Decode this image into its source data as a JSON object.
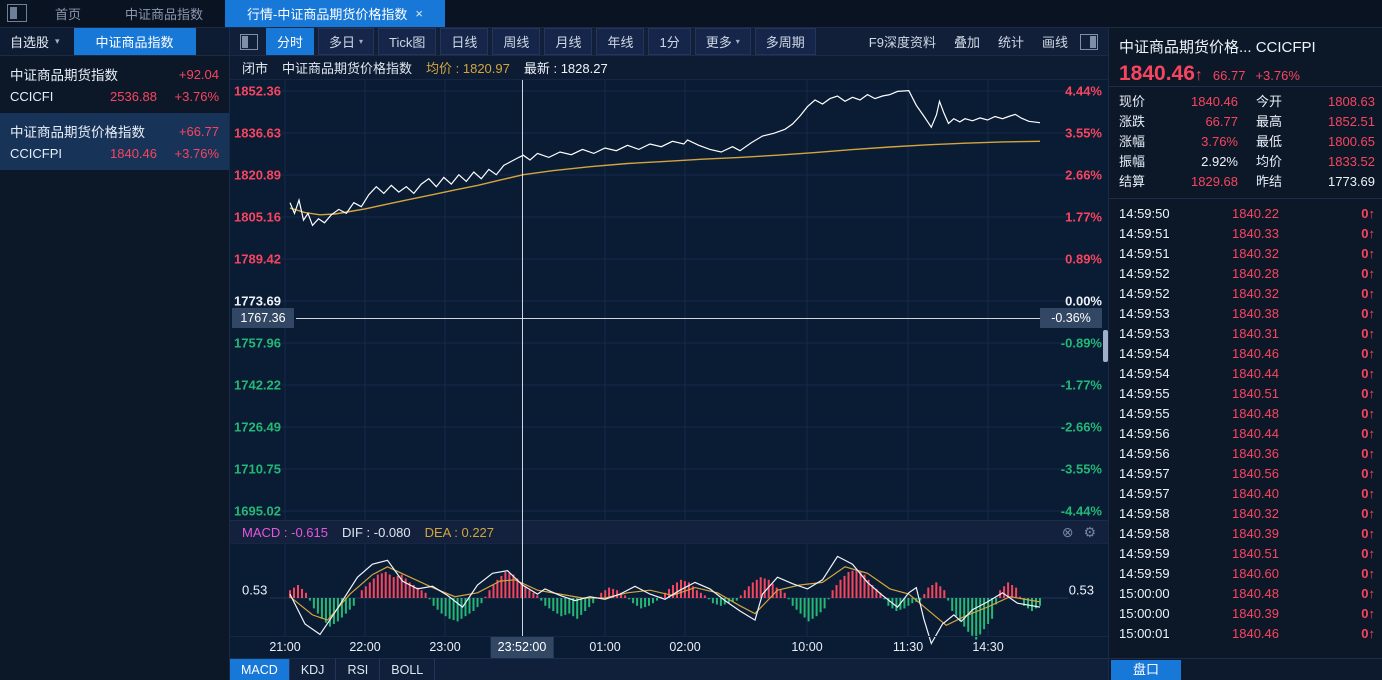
{
  "icons": {
    "caret_down": "▾",
    "close": "×",
    "close_circle": "⊗",
    "gear": "⚙",
    "arrow_up": "↑"
  },
  "colors": {
    "up": "#f8455f",
    "down": "#23b876",
    "accent": "#1878d8",
    "price_line": "#ffffff",
    "avg_line": "#d2a53f",
    "macd_value": "#e557e0",
    "dea_value": "#d2a53f"
  },
  "topbar": {
    "tabs": [
      {
        "label": "首页",
        "active": false
      },
      {
        "label": "中证商品指数",
        "active": false
      },
      {
        "label": "行情-中证商品期货价格指数",
        "active": true,
        "closable": true
      }
    ]
  },
  "sidebar": {
    "dropdown_label": "自选股",
    "tab_label": "中证商品指数",
    "items": [
      {
        "name": "中证商品期货指数",
        "code": "CCICFI",
        "price": "2536.88",
        "change": "+92.04",
        "pct": "+3.76%",
        "selected": false
      },
      {
        "name": "中证商品期货价格指数",
        "code": "CCICFPI",
        "price": "1840.46",
        "change": "+66.77",
        "pct": "+3.76%",
        "selected": true
      }
    ]
  },
  "toolbar": {
    "buttons": [
      {
        "label": "分时",
        "active": true
      },
      {
        "label": "多日",
        "caret": true
      },
      {
        "label": "Tick图"
      },
      {
        "label": "日线"
      },
      {
        "label": "周线"
      },
      {
        "label": "月线"
      },
      {
        "label": "年线"
      },
      {
        "label": "1分"
      },
      {
        "label": "更多",
        "caret": true
      },
      {
        "label": "多周期"
      }
    ],
    "right_items": [
      "F9深度资料",
      "叠加",
      "统计",
      "画线"
    ]
  },
  "chart_header": {
    "status": "闭市",
    "name": "中证商品期货价格指数",
    "avg_text": "均价 : 1820.97",
    "last_label": "最新 : ",
    "last_value": "1828.27"
  },
  "crosshair": {
    "price": "1767.36",
    "pct": "-0.36%",
    "time": "23:52:00"
  },
  "macd_bar": {
    "macd_text": "MACD : -0.615",
    "dif_text": "DIF : -0.080",
    "dea_text": "DEA : 0.227",
    "left_value": "0.53",
    "right_value": "0.53"
  },
  "indicator_tabs": [
    {
      "label": "MACD",
      "active": true
    },
    {
      "label": "KDJ"
    },
    {
      "label": "RSI"
    },
    {
      "label": "BOLL"
    }
  ],
  "quote": {
    "title": "中证商品期货价格...",
    "code": "CCICFPI",
    "price": "1840.46",
    "change": "66.77",
    "pct": "+3.76%",
    "stats": [
      {
        "k": "现价",
        "v": "1840.46"
      },
      {
        "k": "今开",
        "v": "1808.63"
      },
      {
        "k": "涨跌",
        "v": "66.77"
      },
      {
        "k": "最高",
        "v": "1852.51"
      },
      {
        "k": "涨幅",
        "v": "3.76%"
      },
      {
        "k": "最低",
        "v": "1800.65"
      },
      {
        "k": "振幅",
        "v": "2.92%",
        "white": true
      },
      {
        "k": "均价",
        "v": "1833.52"
      },
      {
        "k": "结算",
        "v": "1829.68"
      },
      {
        "k": "昨结",
        "v": "1773.69",
        "white": true
      }
    ]
  },
  "ticks": [
    {
      "t": "14:59:50",
      "p": "1840.22",
      "v": "0"
    },
    {
      "t": "14:59:51",
      "p": "1840.33",
      "v": "0"
    },
    {
      "t": "14:59:51",
      "p": "1840.32",
      "v": "0"
    },
    {
      "t": "14:59:52",
      "p": "1840.28",
      "v": "0"
    },
    {
      "t": "14:59:52",
      "p": "1840.32",
      "v": "0"
    },
    {
      "t": "14:59:53",
      "p": "1840.38",
      "v": "0"
    },
    {
      "t": "14:59:53",
      "p": "1840.31",
      "v": "0"
    },
    {
      "t": "14:59:54",
      "p": "1840.46",
      "v": "0"
    },
    {
      "t": "14:59:54",
      "p": "1840.44",
      "v": "0"
    },
    {
      "t": "14:59:55",
      "p": "1840.51",
      "v": "0"
    },
    {
      "t": "14:59:55",
      "p": "1840.48",
      "v": "0"
    },
    {
      "t": "14:59:56",
      "p": "1840.44",
      "v": "0"
    },
    {
      "t": "14:59:56",
      "p": "1840.36",
      "v": "0"
    },
    {
      "t": "14:59:57",
      "p": "1840.56",
      "v": "0"
    },
    {
      "t": "14:59:57",
      "p": "1840.40",
      "v": "0"
    },
    {
      "t": "14:59:58",
      "p": "1840.32",
      "v": "0"
    },
    {
      "t": "14:59:58",
      "p": "1840.39",
      "v": "0"
    },
    {
      "t": "14:59:59",
      "p": "1840.51",
      "v": "0"
    },
    {
      "t": "14:59:59",
      "p": "1840.60",
      "v": "0"
    },
    {
      "t": "15:00:00",
      "p": "1840.48",
      "v": "0"
    },
    {
      "t": "15:00:00",
      "p": "1840.39",
      "v": "0"
    },
    {
      "t": "15:00:01",
      "p": "1840.46",
      "v": "0"
    }
  ],
  "footer": {
    "pankou": "盘口"
  },
  "chart_data": {
    "type": "line",
    "title": "中证商品期货价格指数 分时图",
    "prev_close": 1773.69,
    "y_ticks_price": [
      1852.36,
      1836.63,
      1820.89,
      1805.16,
      1789.42,
      1773.69,
      1757.96,
      1742.22,
      1726.49,
      1710.75,
      1695.02
    ],
    "y_ticks_pct": [
      "4.44%",
      "3.55%",
      "2.66%",
      "1.77%",
      "0.89%",
      "0.00%",
      "-0.89%",
      "-1.77%",
      "-2.66%",
      "-3.55%",
      "-4.44%"
    ],
    "x_ticks": [
      "21:00",
      "22:00",
      "23:00",
      "01:00",
      "02:00",
      "10:00",
      "11:30",
      "14:30"
    ],
    "series": [
      {
        "name": "price",
        "points": [
          [
            0.0,
            1810.5
          ],
          [
            0.006,
            1806.5
          ],
          [
            0.012,
            1811.5
          ],
          [
            0.018,
            1804.0
          ],
          [
            0.024,
            1806.5
          ],
          [
            0.03,
            1802.0
          ],
          [
            0.038,
            1804.5
          ],
          [
            0.046,
            1803.0
          ],
          [
            0.055,
            1806.0
          ],
          [
            0.065,
            1808.0
          ],
          [
            0.075,
            1806.5
          ],
          [
            0.085,
            1810.5
          ],
          [
            0.095,
            1809.0
          ],
          [
            0.105,
            1813.5
          ],
          [
            0.115,
            1816.5
          ],
          [
            0.125,
            1814.0
          ],
          [
            0.135,
            1817.0
          ],
          [
            0.145,
            1814.5
          ],
          [
            0.155,
            1816.5
          ],
          [
            0.165,
            1814.0
          ],
          [
            0.175,
            1817.5
          ],
          [
            0.185,
            1819.5
          ],
          [
            0.195,
            1816.5
          ],
          [
            0.205,
            1820.0
          ],
          [
            0.215,
            1817.5
          ],
          [
            0.225,
            1821.0
          ],
          [
            0.235,
            1818.5
          ],
          [
            0.245,
            1822.0
          ],
          [
            0.255,
            1819.5
          ],
          [
            0.265,
            1823.0
          ],
          [
            0.275,
            1821.0
          ],
          [
            0.285,
            1824.5
          ],
          [
            0.295,
            1826.0
          ],
          [
            0.305,
            1827.5
          ],
          [
            0.311,
            1828.3
          ],
          [
            0.32,
            1826.5
          ],
          [
            0.33,
            1829.0
          ],
          [
            0.345,
            1827.5
          ],
          [
            0.36,
            1829.5
          ],
          [
            0.375,
            1828.5
          ],
          [
            0.39,
            1830.5
          ],
          [
            0.405,
            1829.0
          ],
          [
            0.42,
            1831.0
          ],
          [
            0.435,
            1830.0
          ],
          [
            0.45,
            1832.0
          ],
          [
            0.465,
            1830.5
          ],
          [
            0.48,
            1832.5
          ],
          [
            0.495,
            1831.5
          ],
          [
            0.51,
            1833.5
          ],
          [
            0.525,
            1832.5
          ],
          [
            0.53,
            1834.0
          ],
          [
            0.545,
            1832.0
          ],
          [
            0.56,
            1830.5
          ],
          [
            0.575,
            1829.5
          ],
          [
            0.59,
            1831.5
          ],
          [
            0.6,
            1830.0
          ],
          [
            0.615,
            1833.0
          ],
          [
            0.63,
            1835.5
          ],
          [
            0.645,
            1836.5
          ],
          [
            0.66,
            1838.0
          ],
          [
            0.67,
            1840.0
          ],
          [
            0.68,
            1843.0
          ],
          [
            0.69,
            1846.5
          ],
          [
            0.7,
            1849.0
          ],
          [
            0.71,
            1847.5
          ],
          [
            0.72,
            1849.5
          ],
          [
            0.73,
            1850.5
          ],
          [
            0.74,
            1848.5
          ],
          [
            0.75,
            1850.0
          ],
          [
            0.76,
            1849.0
          ],
          [
            0.77,
            1851.0
          ],
          [
            0.78,
            1849.5
          ],
          [
            0.79,
            1850.5
          ],
          [
            0.8,
            1851.0
          ],
          [
            0.81,
            1852.2
          ],
          [
            0.825,
            1852.5
          ],
          [
            0.835,
            1847.0
          ],
          [
            0.845,
            1843.0
          ],
          [
            0.855,
            1838.8
          ],
          [
            0.862,
            1843.5
          ],
          [
            0.866,
            1848.5
          ],
          [
            0.872,
            1844.0
          ],
          [
            0.878,
            1840.2
          ],
          [
            0.885,
            1842.0
          ],
          [
            0.893,
            1840.8
          ],
          [
            0.9,
            1842.0
          ],
          [
            0.91,
            1841.2
          ],
          [
            0.92,
            1842.3
          ],
          [
            0.93,
            1841.5
          ],
          [
            0.94,
            1842.8
          ],
          [
            0.95,
            1842.0
          ],
          [
            0.96,
            1843.0
          ],
          [
            0.967,
            1843.6
          ],
          [
            0.975,
            1842.2
          ],
          [
            0.985,
            1841.0
          ],
          [
            1.0,
            1840.5
          ]
        ]
      },
      {
        "name": "avg",
        "points": [
          [
            0.0,
            1808.5
          ],
          [
            0.02,
            1806.8
          ],
          [
            0.04,
            1806.0
          ],
          [
            0.06,
            1806.3
          ],
          [
            0.08,
            1807.2
          ],
          [
            0.1,
            1808.2
          ],
          [
            0.13,
            1810.0
          ],
          [
            0.16,
            1811.8
          ],
          [
            0.19,
            1813.5
          ],
          [
            0.22,
            1815.3
          ],
          [
            0.25,
            1817.0
          ],
          [
            0.28,
            1819.0
          ],
          [
            0.311,
            1821.0
          ],
          [
            0.35,
            1822.5
          ],
          [
            0.4,
            1824.0
          ],
          [
            0.45,
            1825.2
          ],
          [
            0.5,
            1826.0
          ],
          [
            0.55,
            1826.8
          ],
          [
            0.6,
            1827.5
          ],
          [
            0.65,
            1828.3
          ],
          [
            0.7,
            1829.3
          ],
          [
            0.75,
            1830.4
          ],
          [
            0.8,
            1831.4
          ],
          [
            0.85,
            1832.2
          ],
          [
            0.9,
            1832.8
          ],
          [
            0.95,
            1833.3
          ],
          [
            1.0,
            1833.5
          ]
        ]
      }
    ],
    "macd_panel": {
      "hist": [
        0.3,
        0.5,
        0.2,
        -0.4,
        -0.8,
        -1.1,
        -0.9,
        -0.6,
        -0.3,
        0.3,
        0.6,
        0.9,
        1.0,
        0.8,
        0.9,
        0.6,
        0.4,
        0.2,
        -0.3,
        -0.6,
        -0.8,
        -0.9,
        -0.7,
        -0.5,
        -0.2,
        0.3,
        0.7,
        1.0,
        0.9,
        0.6,
        0.3,
        0.1,
        -0.3,
        -0.5,
        -0.7,
        -0.6,
        -0.8,
        -0.5,
        -0.2,
        0.2,
        0.4,
        0.3,
        0.1,
        -0.2,
        -0.4,
        -0.3,
        -0.1,
        0.2,
        0.5,
        0.7,
        0.6,
        0.3,
        0.1,
        -0.2,
        -0.3,
        -0.2,
        -0.1,
        0.3,
        0.6,
        0.8,
        0.7,
        0.4,
        0.2,
        -0.3,
        -0.6,
        -0.9,
        -0.7,
        -0.4,
        0.3,
        0.7,
        1.0,
        1.1,
        0.9,
        0.5,
        0.2,
        -0.3,
        -0.5,
        -0.4,
        -0.2,
        -0.1,
        0.4,
        0.6,
        0.3,
        -0.5,
        -0.9,
        -1.3,
        -1.6,
        -1.2,
        -0.8,
        0.3,
        0.6,
        0.4,
        -0.3,
        -0.5,
        -0.3
      ],
      "dif": [
        [
          0,
          0.15
        ],
        [
          0.02,
          -1.0
        ],
        [
          0.04,
          -1.4
        ],
        [
          0.06,
          -0.55
        ],
        [
          0.09,
          0.8
        ],
        [
          0.11,
          1.3
        ],
        [
          0.13,
          1.45
        ],
        [
          0.15,
          0.65
        ],
        [
          0.17,
          0.35
        ],
        [
          0.19,
          0.45
        ],
        [
          0.21,
          0.1
        ],
        [
          0.23,
          -0.35
        ],
        [
          0.25,
          0.5
        ],
        [
          0.27,
          0.95
        ],
        [
          0.29,
          1.05
        ],
        [
          0.31,
          0.5
        ],
        [
          0.33,
          0.15
        ],
        [
          0.34,
          0.35
        ],
        [
          0.36,
          0.1
        ],
        [
          0.38,
          -0.1
        ],
        [
          0.4,
          0.05
        ],
        [
          0.42,
          -0.05
        ],
        [
          0.44,
          0.15
        ],
        [
          0.46,
          0.45
        ],
        [
          0.48,
          0.15
        ],
        [
          0.5,
          -0.05
        ],
        [
          0.52,
          0.3
        ],
        [
          0.54,
          0.6
        ],
        [
          0.56,
          0.35
        ],
        [
          0.58,
          -0.1
        ],
        [
          0.6,
          -0.5
        ],
        [
          0.62,
          -0.85
        ],
        [
          0.63,
          0.15
        ],
        [
          0.65,
          0.8
        ],
        [
          0.67,
          0.55
        ],
        [
          0.69,
          0.35
        ],
        [
          0.71,
          0.7
        ],
        [
          0.73,
          1.6
        ],
        [
          0.75,
          1.3
        ],
        [
          0.77,
          0.6
        ],
        [
          0.79,
          0.1
        ],
        [
          0.81,
          -0.35
        ],
        [
          0.825,
          0.2
        ],
        [
          0.835,
          0.4
        ],
        [
          0.845,
          -0.8
        ],
        [
          0.855,
          -1.75
        ],
        [
          0.87,
          -1.0
        ],
        [
          0.885,
          -0.65
        ],
        [
          0.895,
          -0.9
        ],
        [
          0.91,
          -0.45
        ],
        [
          0.93,
          -0.15
        ],
        [
          0.95,
          0.2
        ],
        [
          0.97,
          -0.2
        ],
        [
          1.0,
          -0.35
        ]
      ],
      "dea": [
        [
          0,
          0.05
        ],
        [
          0.03,
          -0.65
        ],
        [
          0.05,
          -0.85
        ],
        [
          0.08,
          0.15
        ],
        [
          0.11,
          0.9
        ],
        [
          0.13,
          1.2
        ],
        [
          0.16,
          0.8
        ],
        [
          0.19,
          0.4
        ],
        [
          0.22,
          0.05
        ],
        [
          0.25,
          0.2
        ],
        [
          0.28,
          0.65
        ],
        [
          0.3,
          0.7
        ],
        [
          0.33,
          0.3
        ],
        [
          0.36,
          0.15
        ],
        [
          0.39,
          0.0
        ],
        [
          0.42,
          0.0
        ],
        [
          0.45,
          0.2
        ],
        [
          0.48,
          0.3
        ],
        [
          0.51,
          0.1
        ],
        [
          0.54,
          0.4
        ],
        [
          0.57,
          0.2
        ],
        [
          0.6,
          -0.3
        ],
        [
          0.62,
          -0.6
        ],
        [
          0.65,
          0.3
        ],
        [
          0.68,
          0.5
        ],
        [
          0.71,
          0.6
        ],
        [
          0.74,
          1.2
        ],
        [
          0.77,
          0.95
        ],
        [
          0.8,
          0.35
        ],
        [
          0.825,
          0.15
        ],
        [
          0.85,
          -0.45
        ],
        [
          0.875,
          -1.05
        ],
        [
          0.9,
          -0.7
        ],
        [
          0.93,
          -0.35
        ],
        [
          0.96,
          0.05
        ],
        [
          1.0,
          -0.15
        ]
      ]
    }
  }
}
